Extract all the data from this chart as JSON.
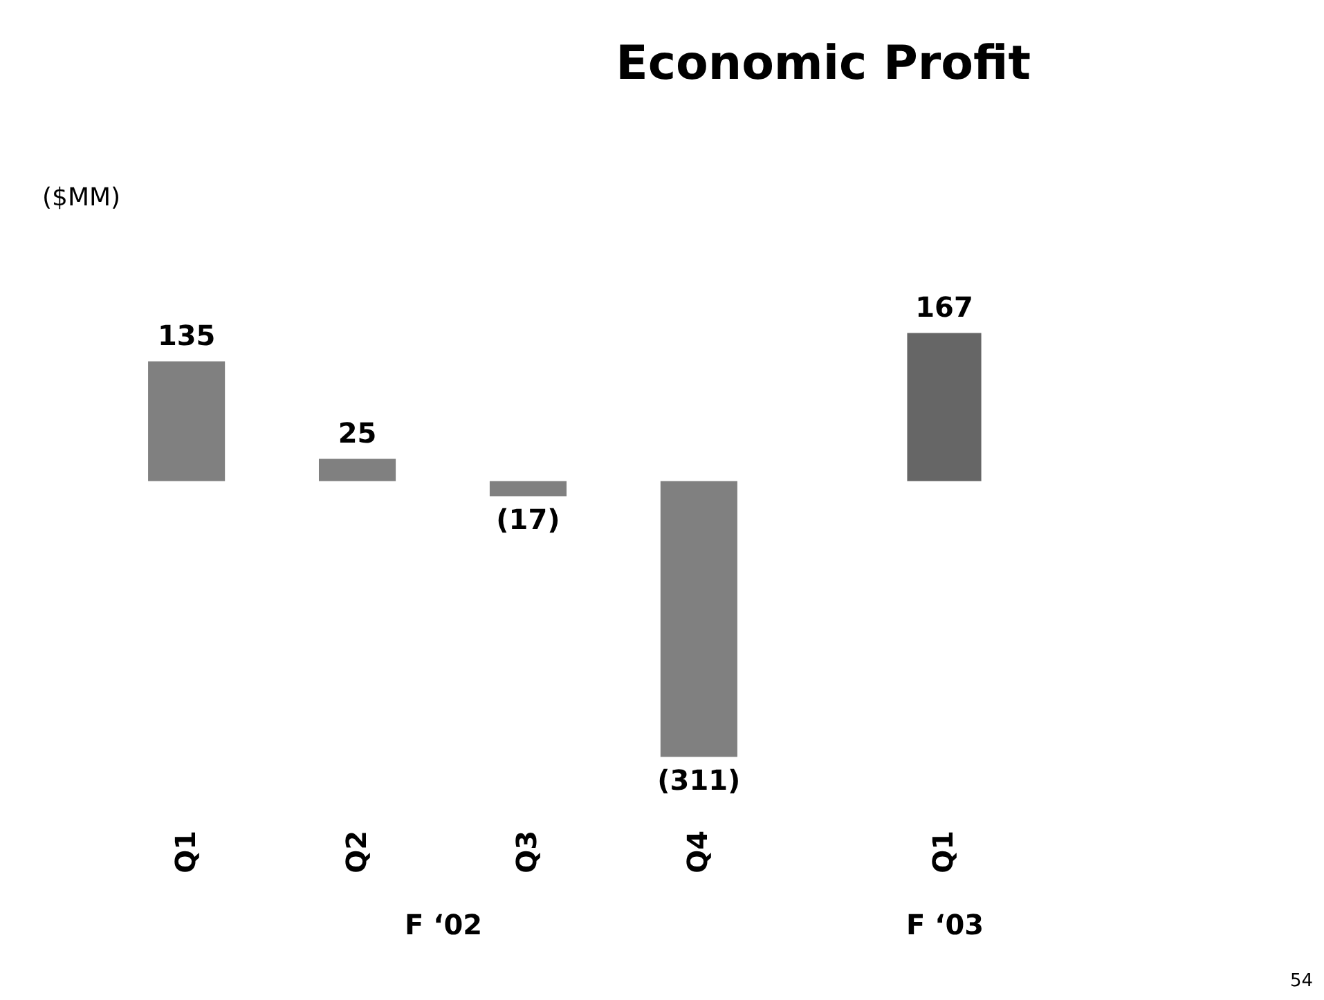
{
  "chart_data": [
    {
      "type": "bar",
      "title": "Economic Profit",
      "ylabel": "($MM)",
      "xlabel": "F ‘02",
      "categories": [
        "Q1",
        "Q2",
        "Q3",
        "Q4"
      ],
      "values": [
        135,
        25,
        -17,
        -311
      ],
      "value_labels": [
        "135",
        "25",
        "(17)",
        "(311)"
      ],
      "color": "#808080",
      "annotations": [
        "54"
      ]
    },
    {
      "type": "bar",
      "xlabel": "F ‘03",
      "categories": [
        "Q1"
      ],
      "values": [
        167
      ],
      "value_labels": [
        "167"
      ],
      "color": "#666666"
    }
  ]
}
